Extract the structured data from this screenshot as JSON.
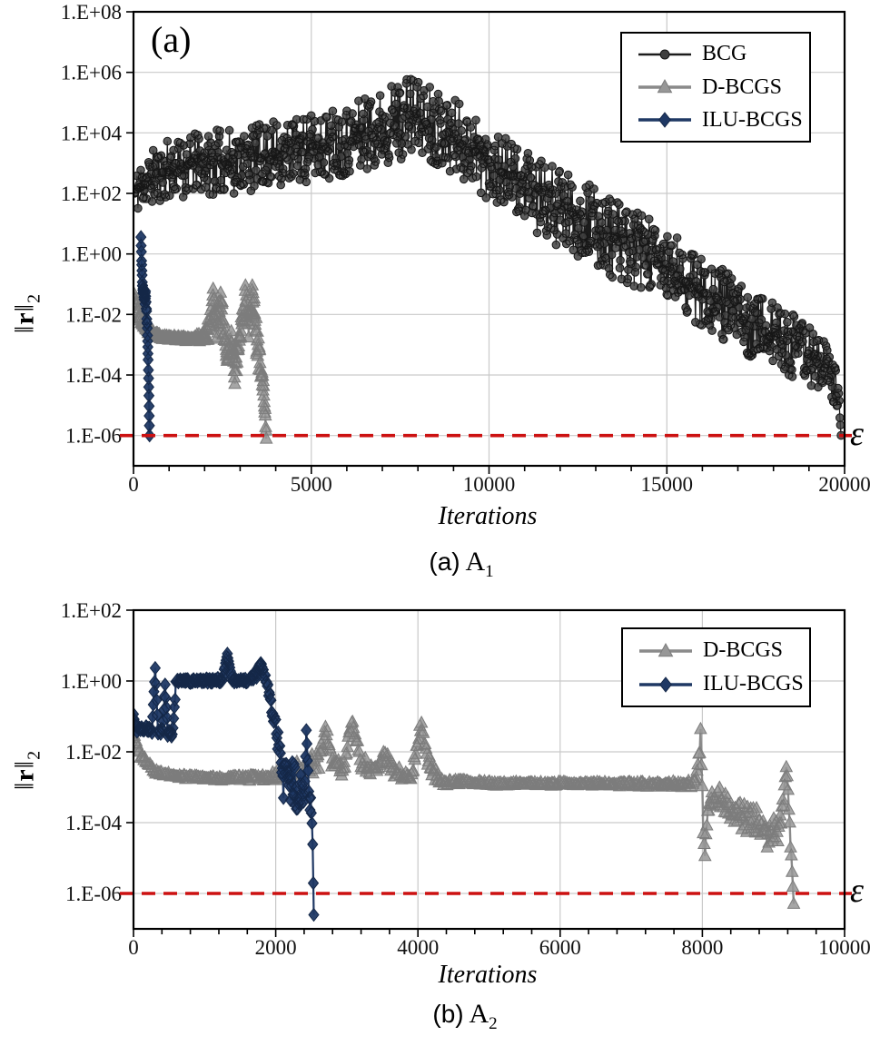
{
  "figure": {
    "background": "#ffffff",
    "epsilon_label": "ε",
    "xlabel": "Iterations",
    "ylabel": {
      "pre": "‖",
      "bold": "r",
      "post": "‖",
      "sub": "2"
    },
    "grid_color": "#c9c9c9",
    "border_color": "#000000",
    "epsilon_line_color": "#cc1111",
    "tick_label_color": "#111111"
  },
  "chart_data": [
    {
      "id": "a",
      "type": "line",
      "inside_label": "(a)",
      "caption": {
        "tag": "(a)",
        "matrix": "A",
        "sub": "1"
      },
      "xlabel": "Iterations",
      "ylabel": "||r||_2",
      "x_axis": {
        "min": 0,
        "max": 20000,
        "major_ticks": [
          0,
          5000,
          10000,
          15000,
          20000
        ],
        "minor_step": 1000,
        "tick_labels": [
          "0",
          "5000",
          "10000",
          "15000",
          "20000"
        ]
      },
      "y_axis": {
        "scale": "log10",
        "top_log": 8,
        "bottom_log": -7,
        "tick_logs": [
          8,
          6,
          4,
          2,
          0,
          -2,
          -4,
          -6
        ],
        "tick_labels": [
          "1.E+08",
          "1.E+06",
          "1.E+04",
          "1.E+02",
          "1.E+00",
          "1.E-02",
          "1.E-04",
          "1.E-06"
        ]
      },
      "epsilon_log": -6,
      "legend_position": "top-right",
      "series": [
        {
          "name": "BCG",
          "marker": "circle",
          "line_color": "#1c1c1c",
          "marker_fill": "#3f3f3f",
          "marker_stroke": "#161616",
          "line_width": 1.3,
          "marker_opacity": 0.85,
          "step": 16,
          "seed": 11,
          "spike_exp": 1.35,
          "anchors_x_log10y_halfwidth": [
            [
              30,
              2.0,
              0.75
            ],
            [
              300,
              2.4,
              0.9
            ],
            [
              1000,
              2.8,
              1.0
            ],
            [
              2000,
              3.0,
              1.05
            ],
            [
              3000,
              3.1,
              1.1
            ],
            [
              4000,
              3.3,
              1.1
            ],
            [
              5000,
              3.5,
              1.15
            ],
            [
              6000,
              3.8,
              1.2
            ],
            [
              7000,
              4.2,
              1.3
            ],
            [
              7800,
              4.6,
              1.35
            ],
            [
              8300,
              4.4,
              1.3
            ],
            [
              9000,
              3.9,
              1.3
            ],
            [
              9500,
              3.5,
              1.25
            ],
            [
              10000,
              3.0,
              1.25
            ],
            [
              10500,
              2.6,
              1.2
            ],
            [
              11000,
              2.2,
              1.2
            ],
            [
              11500,
              1.8,
              1.25
            ],
            [
              12000,
              1.5,
              1.3
            ],
            [
              12500,
              1.2,
              1.3
            ],
            [
              13000,
              0.9,
              1.3
            ],
            [
              13500,
              0.5,
              1.3
            ],
            [
              14000,
              0.2,
              1.3
            ],
            [
              14500,
              -0.1,
              1.3
            ],
            [
              15000,
              -0.5,
              1.3
            ],
            [
              15500,
              -0.9,
              1.25
            ],
            [
              16000,
              -1.2,
              1.2
            ],
            [
              16500,
              -1.6,
              1.2
            ],
            [
              17000,
              -2.0,
              1.15
            ],
            [
              17500,
              -2.4,
              1.1
            ],
            [
              18000,
              -2.7,
              1.1
            ],
            [
              18500,
              -3.0,
              1.05
            ],
            [
              19000,
              -3.3,
              1.0
            ],
            [
              19400,
              -3.7,
              0.95
            ],
            [
              19700,
              -4.2,
              0.8
            ],
            [
              19850,
              -5.0,
              0.45
            ],
            [
              19900,
              -6.0,
              0.02
            ]
          ]
        },
        {
          "name": "D-BCGS",
          "marker": "triangle",
          "line_color": "#8a8a8a",
          "marker_fill": "#979797",
          "marker_stroke": "#7c7c7c",
          "line_width": 2.4,
          "marker_opacity": 0.85,
          "step": 9,
          "seed": 5,
          "spike_exp": 1.5,
          "anchors_x_log10y_halfwidth": [
            [
              20,
              -1.35,
              0.15
            ],
            [
              150,
              -2.05,
              0.12
            ],
            [
              400,
              -2.55,
              0.1
            ],
            [
              800,
              -2.75,
              0.08
            ],
            [
              1500,
              -2.8,
              0.08
            ],
            [
              2000,
              -2.75,
              0.15
            ],
            [
              2150,
              -2.3,
              0.5
            ],
            [
              2250,
              -1.5,
              0.45
            ],
            [
              2350,
              -2.4,
              0.6
            ],
            [
              2450,
              -1.6,
              0.5
            ],
            [
              2550,
              -2.6,
              0.55
            ],
            [
              2650,
              -3.4,
              0.6
            ],
            [
              2750,
              -2.9,
              0.5
            ],
            [
              2850,
              -3.8,
              0.5
            ],
            [
              2950,
              -3.0,
              0.45
            ],
            [
              3050,
              -2.3,
              0.5
            ],
            [
              3150,
              -1.4,
              0.45
            ],
            [
              3250,
              -2.4,
              0.55
            ],
            [
              3350,
              -1.35,
              0.45
            ],
            [
              3450,
              -2.7,
              0.65
            ],
            [
              3550,
              -3.5,
              0.6
            ],
            [
              3650,
              -4.4,
              0.35
            ],
            [
              3700,
              -5.2,
              0.15
            ],
            [
              3735,
              -6.1,
              0.02
            ]
          ]
        },
        {
          "name": "ILU-BCGS",
          "marker": "diamond",
          "line_color": "#1f3864",
          "marker_fill": "#1f3864",
          "marker_stroke": "#142747",
          "line_width": 2.2,
          "marker_opacity": 0.95,
          "step": 5,
          "seed": 3,
          "spike_exp": 1.3,
          "anchors_x_log10y_halfwidth": [
            [
              210,
              0.55,
              0.02
            ],
            [
              232,
              -0.4,
              0.1
            ],
            [
              252,
              -1.0,
              0.15
            ],
            [
              280,
              -1.3,
              0.22
            ],
            [
              310,
              -1.5,
              0.22
            ],
            [
              338,
              -1.4,
              0.2
            ],
            [
              362,
              -1.8,
              0.12
            ],
            [
              382,
              -2.3,
              0.08
            ],
            [
              398,
              -2.9,
              0.06
            ],
            [
              412,
              -3.5,
              0.05
            ],
            [
              424,
              -4.1,
              0.04
            ],
            [
              434,
              -4.7,
              0.03
            ],
            [
              443,
              -5.35,
              0.02
            ],
            [
              451,
              -6.0,
              0.01
            ]
          ]
        }
      ]
    },
    {
      "id": "b",
      "type": "line",
      "inside_label": "",
      "caption": {
        "tag": "(b)",
        "matrix": "A",
        "sub": "2"
      },
      "xlabel": "Iterations",
      "ylabel": "||r||_2",
      "x_axis": {
        "min": 0,
        "max": 10000,
        "major_ticks": [
          0,
          2000,
          4000,
          6000,
          8000,
          10000
        ],
        "minor_step": 400,
        "tick_labels": [
          "0",
          "2000",
          "4000",
          "6000",
          "8000",
          "10000"
        ]
      },
      "y_axis": {
        "scale": "log10",
        "top_log": 2,
        "bottom_log": -7,
        "tick_logs": [
          2,
          0,
          -2,
          -4,
          -6
        ],
        "tick_labels": [
          "1.E+02",
          "1.E+00",
          "1.E-02",
          "1.E-04",
          "1.E-06"
        ]
      },
      "epsilon_log": -6,
      "legend_position": "top-right",
      "series": [
        {
          "name": "D-BCGS",
          "marker": "triangle",
          "line_color": "#8a8a8a",
          "marker_fill": "#979797",
          "marker_stroke": "#7c7c7c",
          "line_width": 2.4,
          "marker_opacity": 0.85,
          "step": 12,
          "seed": 9,
          "spike_exp": 1.5,
          "anchors_x_log10y_halfwidth": [
            [
              0,
              -1.55,
              0.12
            ],
            [
              100,
              -2.1,
              0.1
            ],
            [
              300,
              -2.55,
              0.07
            ],
            [
              600,
              -2.7,
              0.06
            ],
            [
              1200,
              -2.75,
              0.06
            ],
            [
              1900,
              -2.72,
              0.1
            ],
            [
              2050,
              -2.6,
              0.2
            ],
            [
              2250,
              -2.55,
              0.25
            ],
            [
              2450,
              -2.45,
              0.3
            ],
            [
              2620,
              -2.2,
              0.3
            ],
            [
              2700,
              -1.35,
              0.15
            ],
            [
              2800,
              -2.3,
              0.3
            ],
            [
              2950,
              -2.5,
              0.2
            ],
            [
              3080,
              -1.15,
              0.2
            ],
            [
              3200,
              -2.35,
              0.3
            ],
            [
              3400,
              -2.5,
              0.2
            ],
            [
              3550,
              -2.15,
              0.25
            ],
            [
              3700,
              -2.6,
              0.2
            ],
            [
              3900,
              -2.75,
              0.12
            ],
            [
              4050,
              -1.25,
              0.25
            ],
            [
              4150,
              -2.3,
              0.35
            ],
            [
              4300,
              -2.85,
              0.1
            ],
            [
              5200,
              -2.9,
              0.06
            ],
            [
              6400,
              -2.9,
              0.06
            ],
            [
              7400,
              -2.92,
              0.07
            ],
            [
              7900,
              -2.9,
              0.1
            ],
            [
              7975,
              -1.65,
              0.3
            ],
            [
              8025,
              -4.9,
              0.6
            ],
            [
              8100,
              -3.3,
              0.25
            ],
            [
              8300,
              -3.35,
              0.4
            ],
            [
              8450,
              -3.6,
              0.45
            ],
            [
              8600,
              -3.85,
              0.4
            ],
            [
              8750,
              -4.0,
              0.45
            ],
            [
              8900,
              -4.25,
              0.5
            ],
            [
              9050,
              -4.2,
              0.5
            ],
            [
              9130,
              -3.6,
              0.4
            ],
            [
              9180,
              -2.4,
              0.2
            ],
            [
              9240,
              -4.3,
              0.4
            ],
            [
              9285,
              -6.3,
              0.02
            ]
          ]
        },
        {
          "name": "ILU-BCGS",
          "marker": "diamond",
          "line_color": "#1f3864",
          "marker_fill": "#1f3864",
          "marker_stroke": "#142747",
          "line_width": 2.2,
          "marker_opacity": 0.95,
          "step": 9,
          "seed": 4,
          "spike_exp": 1.3,
          "anchors_x_log10y_halfwidth": [
            [
              0,
              -1.0,
              0.08
            ],
            [
              50,
              -1.35,
              0.1
            ],
            [
              160,
              -1.4,
              0.12
            ],
            [
              260,
              -1.35,
              0.12
            ],
            [
              305,
              0.35,
              0.03
            ],
            [
              345,
              -1.4,
              0.1
            ],
            [
              410,
              -1.45,
              0.1
            ],
            [
              445,
              -0.1,
              0.03
            ],
            [
              480,
              -1.45,
              0.1
            ],
            [
              545,
              -1.55,
              0.1
            ],
            [
              575,
              -0.8,
              0.2
            ],
            [
              595,
              0.0,
              0.05
            ],
            [
              900,
              0.0,
              0.06
            ],
            [
              1250,
              0.02,
              0.07
            ],
            [
              1320,
              0.75,
              0.03
            ],
            [
              1390,
              0.0,
              0.07
            ],
            [
              1600,
              0.02,
              0.07
            ],
            [
              1730,
              0.2,
              0.12
            ],
            [
              1790,
              0.5,
              0.03
            ],
            [
              1845,
              0.1,
              0.12
            ],
            [
              1900,
              -0.3,
              0.2
            ],
            [
              1950,
              -0.85,
              0.25
            ],
            [
              2000,
              -1.35,
              0.3
            ],
            [
              2050,
              -2.0,
              0.45
            ],
            [
              2100,
              -2.9,
              0.55
            ],
            [
              2150,
              -2.2,
              0.6
            ],
            [
              2200,
              -3.2,
              0.6
            ],
            [
              2250,
              -2.7,
              0.6
            ],
            [
              2300,
              -3.5,
              0.5
            ],
            [
              2350,
              -3.0,
              0.55
            ],
            [
              2400,
              -3.6,
              0.4
            ],
            [
              2430,
              -1.4,
              0.05
            ],
            [
              2465,
              -3.2,
              0.3
            ],
            [
              2500,
              -3.6,
              0.2
            ],
            [
              2520,
              -4.6,
              0.1
            ],
            [
              2529,
              -5.7,
              0.03
            ],
            [
              2535,
              -6.6,
              0.01
            ]
          ]
        }
      ]
    }
  ]
}
